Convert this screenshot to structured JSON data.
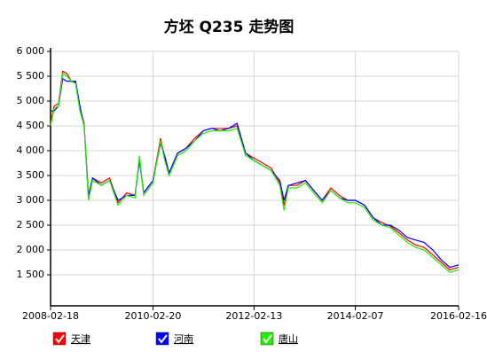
{
  "chart_data": {
    "type": "line",
    "title": "方坯 Q235 走势图",
    "x": [
      "2008-02-18",
      "2008-03-15",
      "2008-04-15",
      "2008-05-15",
      "2008-06-15",
      "2008-07-15",
      "2008-08-15",
      "2008-09-15",
      "2008-10-15",
      "2008-11-15",
      "2008-12-15",
      "2009-02-15",
      "2009-04-15",
      "2009-06-15",
      "2009-08-15",
      "2009-10-15",
      "2009-11-15",
      "2009-12-15",
      "2010-02-20",
      "2010-04-15",
      "2010-05-15",
      "2010-06-15",
      "2010-08-15",
      "2010-10-15",
      "2010-12-15",
      "2011-02-15",
      "2011-04-15",
      "2011-06-15",
      "2011-08-15",
      "2011-10-15",
      "2011-12-15",
      "2012-02-13",
      "2012-04-15",
      "2012-06-15",
      "2012-08-15",
      "2012-09-15",
      "2012-10-15",
      "2012-12-15",
      "2013-02-15",
      "2013-04-15",
      "2013-06-15",
      "2013-08-15",
      "2013-10-15",
      "2013-12-15",
      "2014-02-07",
      "2014-04-15",
      "2014-06-15",
      "2014-08-15",
      "2014-10-15",
      "2014-12-15",
      "2015-02-15",
      "2015-04-15",
      "2015-06-15",
      "2015-08-15",
      "2015-10-15",
      "2015-12-15",
      "2016-02-16"
    ],
    "series": [
      {
        "name": "天津",
        "color": "#ff0000",
        "values": [
          4550,
          4900,
          4950,
          5600,
          5550,
          5400,
          5380,
          4850,
          4550,
          3050,
          3450,
          3350,
          3450,
          2950,
          3150,
          3100,
          3850,
          3150,
          3400,
          4250,
          3850,
          3550,
          3950,
          4050,
          4250,
          4400,
          4450,
          4450,
          4450,
          4500,
          3950,
          3850,
          3750,
          3650,
          3350,
          2900,
          3300,
          3300,
          3400,
          3200,
          3000,
          3250,
          3100,
          3000,
          3000,
          2900,
          2650,
          2550,
          2480,
          2350,
          2200,
          2100,
          2050,
          1900,
          1750,
          1600,
          1650
        ]
      },
      {
        "name": "河南",
        "color": "#0000ff",
        "values": [
          4800,
          4800,
          4900,
          5450,
          5400,
          5400,
          5400,
          4900,
          4500,
          3100,
          3450,
          3300,
          3400,
          3000,
          3100,
          3100,
          3800,
          3150,
          3400,
          4150,
          3900,
          3550,
          3950,
          4050,
          4200,
          4400,
          4450,
          4400,
          4450,
          4550,
          3950,
          3800,
          3700,
          3600,
          3400,
          3000,
          3300,
          3350,
          3400,
          3200,
          3000,
          3200,
          3050,
          3000,
          3000,
          2900,
          2650,
          2500,
          2500,
          2400,
          2250,
          2200,
          2150,
          2000,
          1800,
          1650,
          1700
        ]
      },
      {
        "name": "唐山",
        "color": "#22ee00",
        "values": [
          4500,
          4850,
          4900,
          5550,
          5500,
          5400,
          5350,
          4800,
          4500,
          3000,
          3400,
          3300,
          3400,
          2900,
          3100,
          3050,
          3900,
          3100,
          3350,
          4200,
          3800,
          3500,
          3900,
          4000,
          4200,
          4350,
          4400,
          4400,
          4400,
          4450,
          3900,
          3800,
          3700,
          3600,
          3300,
          2800,
          3250,
          3250,
          3350,
          3150,
          2950,
          3200,
          3050,
          2950,
          2950,
          2850,
          2600,
          2500,
          2450,
          2300,
          2150,
          2050,
          2000,
          1850,
          1700,
          1550,
          1600
        ]
      }
    ],
    "xlim": [
      "2008-02-18",
      "2016-02-16"
    ],
    "xticks": [
      "2008-02-18",
      "2010-02-20",
      "2012-02-13",
      "2014-02-07",
      "2016-02-16"
    ],
    "ylim": [
      875,
      6000
    ],
    "yticks": [
      {
        "value": 1500,
        "label": "1 500"
      },
      {
        "value": 2000,
        "label": "2 000"
      },
      {
        "value": 2500,
        "label": "2 500"
      },
      {
        "value": 3000,
        "label": "3 000"
      },
      {
        "value": 3500,
        "label": "3 500"
      },
      {
        "value": 4000,
        "label": "4 000"
      },
      {
        "value": 4500,
        "label": "4 500"
      },
      {
        "value": 5000,
        "label": "5 000"
      },
      {
        "value": 5500,
        "label": "5 500"
      },
      {
        "value": 6000,
        "label": "6 000"
      }
    ],
    "grid": true
  }
}
